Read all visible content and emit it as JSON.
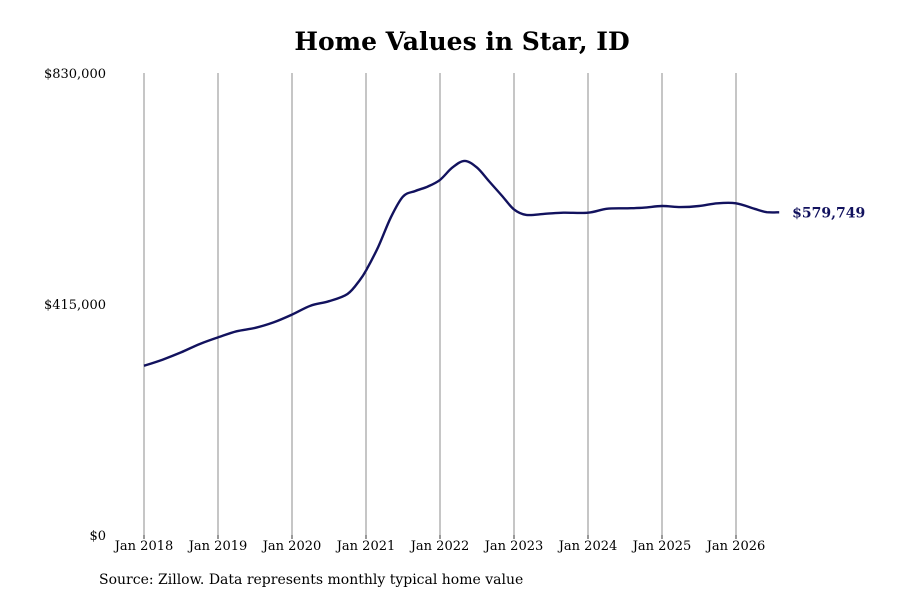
{
  "chart_data": {
    "type": "line",
    "title": "Home Values in Star, ID",
    "xlabel": "",
    "ylabel": "",
    "x_ticks": [
      "Jan 2018",
      "Jan 2019",
      "Jan 2020",
      "Jan 2021",
      "Jan 2022",
      "Jan 2023",
      "Jan 2024",
      "Jan 2025",
      "Jan 2026"
    ],
    "y_ticks": [
      "$0",
      "$415,000",
      "$830,000"
    ],
    "ylim": [
      0,
      830000
    ],
    "xlim": [
      "2018-01",
      "2026-08"
    ],
    "grid": "vertical lines at year ticks",
    "line_color": "#12125e",
    "end_label": "$579,749",
    "series": [
      {
        "points": [
          [
            "2018-01",
            304000
          ],
          [
            "2018-04",
            315000
          ],
          [
            "2018-07",
            328000
          ],
          [
            "2018-10",
            343000
          ],
          [
            "2019-01",
            355000
          ],
          [
            "2019-04",
            366000
          ],
          [
            "2019-07",
            372000
          ],
          [
            "2019-10",
            382000
          ],
          [
            "2020-01",
            396000
          ],
          [
            "2020-04",
            412000
          ],
          [
            "2020-07",
            420000
          ],
          [
            "2020-10",
            433000
          ],
          [
            "2020-12",
            458000
          ],
          [
            "2021-01",
            475000
          ],
          [
            "2021-03",
            518000
          ],
          [
            "2021-05",
            570000
          ],
          [
            "2021-07",
            608000
          ],
          [
            "2021-09",
            618000
          ],
          [
            "2021-11",
            626000
          ],
          [
            "2022-01",
            638000
          ],
          [
            "2022-03",
            660000
          ],
          [
            "2022-05",
            672000
          ],
          [
            "2022-07",
            660000
          ],
          [
            "2022-09",
            635000
          ],
          [
            "2022-11",
            610000
          ],
          [
            "2023-01",
            585000
          ],
          [
            "2023-03",
            575000
          ],
          [
            "2023-06",
            577000
          ],
          [
            "2023-09",
            579000
          ],
          [
            "2024-01",
            579000
          ],
          [
            "2024-04",
            586000
          ],
          [
            "2024-07",
            587000
          ],
          [
            "2024-10",
            588000
          ],
          [
            "2025-01",
            591000
          ],
          [
            "2025-04",
            589000
          ],
          [
            "2025-07",
            591000
          ],
          [
            "2025-10",
            596000
          ],
          [
            "2026-01",
            596000
          ],
          [
            "2026-04",
            586000
          ],
          [
            "2026-06",
            580000
          ],
          [
            "2026-08",
            579749
          ]
        ]
      }
    ]
  },
  "footer": {
    "source": "Source: Zillow. Data represents monthly typical home value"
  }
}
